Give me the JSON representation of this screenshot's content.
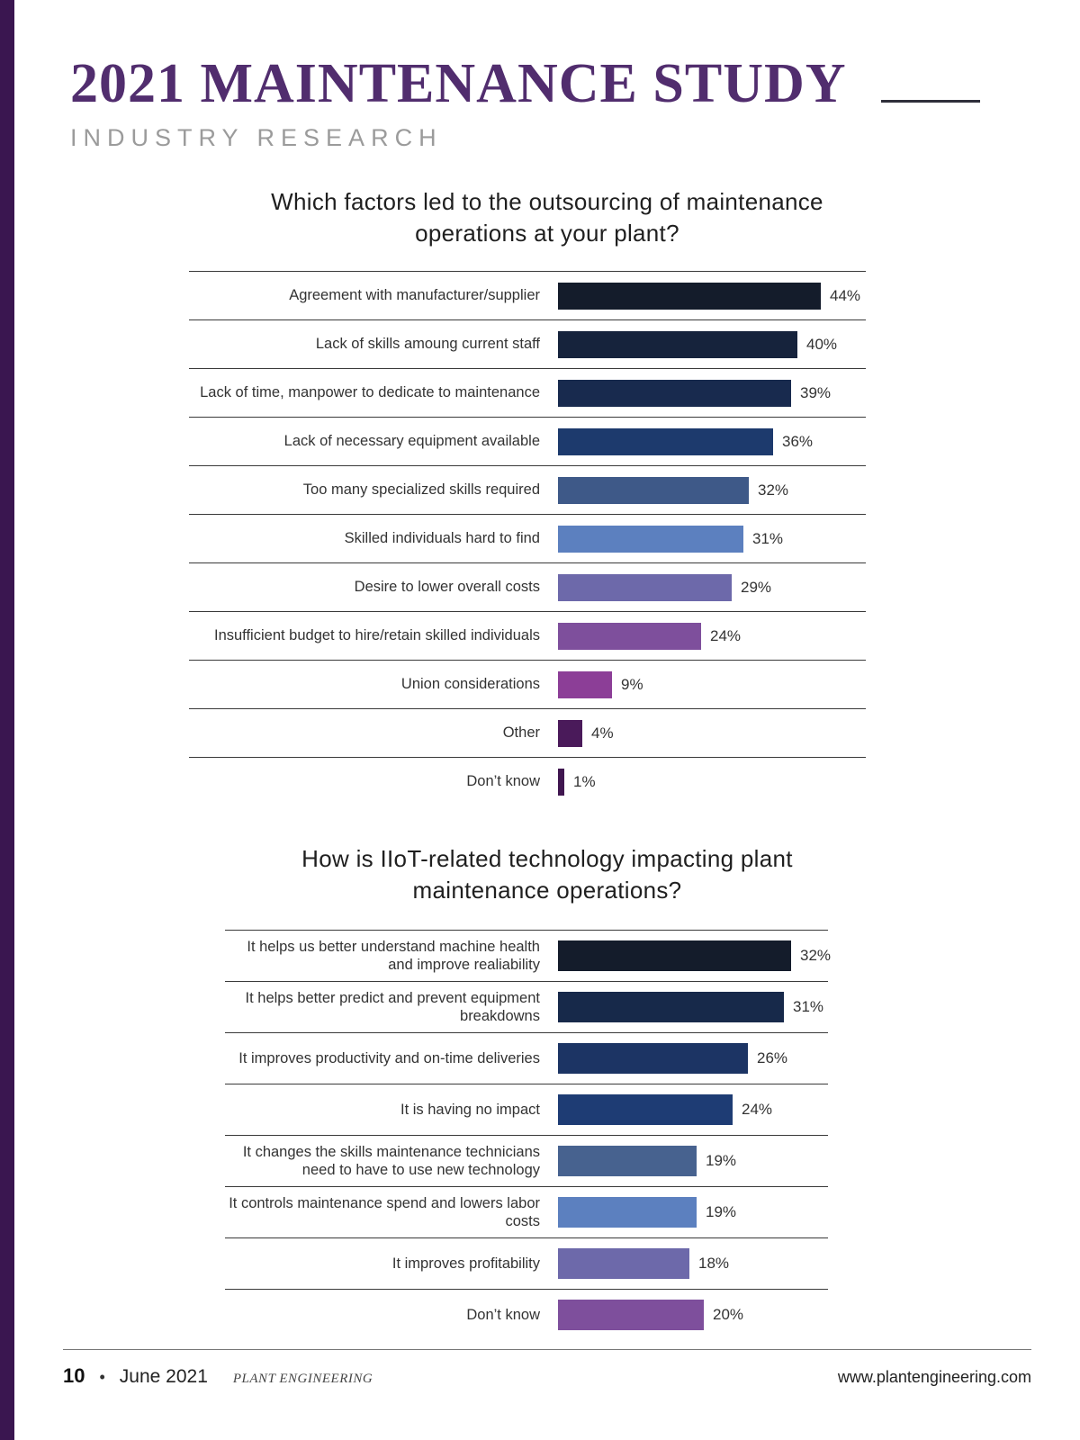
{
  "page": {
    "title": "2021 MAINTENANCE STUDY",
    "subtitle": "INDUSTRY RESEARCH",
    "footer": {
      "page_number": "10",
      "bullet": "•",
      "date": "June 2021",
      "publication": "PLANT ENGINEERING",
      "website": "www.plantengineering.com"
    }
  },
  "chart_data": [
    {
      "type": "bar",
      "orientation": "horizontal",
      "title": "Which factors led to the outsourcing of maintenance operations at your plant?",
      "categories": [
        "Agreement with manufacturer/supplier",
        "Lack of skills amoung current staff",
        "Lack of time, manpower to dedicate to maintenance",
        "Lack of necessary equipment available",
        "Too many specialized skills required",
        "Skilled individuals hard to find",
        "Desire to lower overall costs",
        "Insufficient budget to hire/retain skilled individuals",
        "Union considerations",
        "Other",
        "Don’t know"
      ],
      "values": [
        44,
        40,
        39,
        36,
        32,
        31,
        29,
        24,
        9,
        4,
        1
      ],
      "value_labels": [
        "44%",
        "40%",
        "39%",
        "36%",
        "32%",
        "31%",
        "29%",
        "24%",
        "9%",
        "4%",
        "1%"
      ],
      "bar_colors": [
        "#141c2b",
        "#16233c",
        "#182a4e",
        "#1d3a6d",
        "#3e5988",
        "#5c80bf",
        "#6d69aa",
        "#7e4f9c",
        "#8c3e97",
        "#4a1a5a",
        "#401650"
      ],
      "xlim": [
        0,
        48
      ],
      "grid": "row-separator-lines",
      "value_label_position": "right-of-bar"
    },
    {
      "type": "bar",
      "orientation": "horizontal",
      "title": "How is IIoT-related technology impacting plant maintenance operations?",
      "categories": [
        "It helps us better understand machine health and improve realiability",
        "It helps better predict and prevent equipment breakdowns",
        "It improves productivity and on-time deliveries",
        "It is having no impact",
        "It changes the skills maintenance technicians need to have to use new technology",
        "It controls maintenance spend and lowers labor costs",
        "It improves profitability",
        "Don’t know"
      ],
      "values": [
        32,
        31,
        26,
        24,
        19,
        19,
        18,
        20
      ],
      "value_labels": [
        "32%",
        "31%",
        "26%",
        "24%",
        "19%",
        "19%",
        "18%",
        "20%"
      ],
      "bar_colors": [
        "#141c2b",
        "#17294a",
        "#1c3464",
        "#1e3c74",
        "#47628f",
        "#5c80bf",
        "#6d69aa",
        "#7e4f9c"
      ],
      "xlim": [
        0,
        37
      ],
      "grid": "row-separator-lines",
      "value_label_position": "right-of-bar"
    }
  ]
}
